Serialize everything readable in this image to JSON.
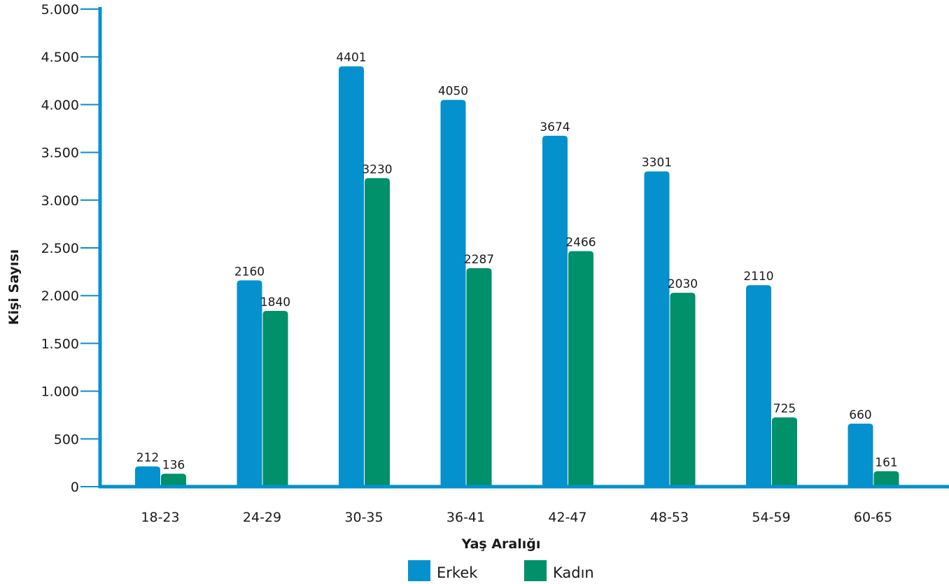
{
  "chart_data": {
    "type": "bar",
    "categories": [
      "18-23",
      "24-29",
      "30-35",
      "36-41",
      "42-47",
      "48-53",
      "54-59",
      "60-65"
    ],
    "series": [
      {
        "name": "Erkek",
        "color": "#0591cd",
        "values": [
          212,
          2160,
          4401,
          4050,
          3674,
          3301,
          2110,
          660
        ]
      },
      {
        "name": "Kadın",
        "color": "#00906a",
        "values": [
          136,
          1840,
          3230,
          2287,
          2466,
          2030,
          725,
          161
        ]
      }
    ],
    "data_labels": [
      [
        "212",
        "2160",
        "4401",
        "4050",
        "3674",
        "3301",
        "2110",
        "660"
      ],
      [
        "136",
        "1840",
        "3230",
        "2287",
        "2466",
        "2030",
        "725",
        "161"
      ]
    ],
    "xlabel": "Yaş Aralığı",
    "ylabel": "Kişi Sayısı",
    "ylim": [
      0,
      5000
    ],
    "yticks": [
      0,
      500,
      1000,
      1500,
      2000,
      2500,
      3000,
      3500,
      4000,
      4500,
      5000
    ],
    "ytick_labels": [
      "0",
      "500",
      "1.000",
      "1.500",
      "2.000",
      "2.500",
      "3.000",
      "3.500",
      "4.000",
      "4.500",
      "5.000"
    ],
    "grid": false,
    "legend_position": "bottom-center",
    "axis_color": "#0591cd"
  }
}
